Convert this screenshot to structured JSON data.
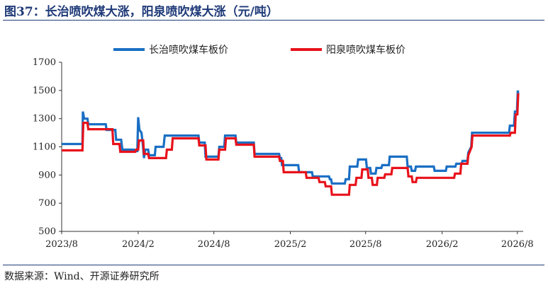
{
  "title": "图37：长治喷吹煤大涨，阳泉喷吹煤大涨（元/吨）",
  "source": "数据来源：Wind、开源证券研究所",
  "chart_data": {
    "type": "line",
    "xlabel": "",
    "ylabel": "",
    "ylim": [
      500,
      1700
    ],
    "yticks": [
      "500",
      "700",
      "900",
      "1100",
      "1300",
      "1500",
      "1700"
    ],
    "xlim": [
      "2023-08-01",
      "2026-08-15"
    ],
    "xticks": [
      {
        "date": "2023-08-01",
        "label": "2023/8"
      },
      {
        "date": "2024-02-01",
        "label": "2024/2"
      },
      {
        "date": "2024-08-01",
        "label": "2024/8"
      },
      {
        "date": "2025-02-01",
        "label": "2025/2"
      },
      {
        "date": "2025-08-01",
        "label": "2025/8"
      },
      {
        "date": "2026-02-01",
        "label": "2026/2"
      },
      {
        "date": "2026-08-01",
        "label": "2026/8"
      }
    ],
    "grid": false,
    "legend_position": "top-center",
    "series": [
      {
        "name": "长治喷吹煤车板价",
        "color": "#1a6fc4",
        "points": [
          [
            "2023-08-01",
            1120
          ],
          [
            "2023-09-20",
            1120
          ],
          [
            "2023-09-21",
            1350
          ],
          [
            "2023-09-24",
            1300
          ],
          [
            "2023-10-02",
            1300
          ],
          [
            "2023-10-04",
            1260
          ],
          [
            "2023-11-15",
            1260
          ],
          [
            "2023-11-17",
            1220
          ],
          [
            "2023-12-08",
            1220
          ],
          [
            "2023-12-10",
            1150
          ],
          [
            "2023-12-22",
            1150
          ],
          [
            "2023-12-25",
            1080
          ],
          [
            "2024-01-22",
            1080
          ],
          [
            "2024-01-24",
            1070
          ],
          [
            "2024-01-30",
            1070
          ],
          [
            "2024-02-01",
            1310
          ],
          [
            "2024-02-04",
            1220
          ],
          [
            "2024-02-09",
            1200
          ],
          [
            "2024-02-12",
            1120
          ],
          [
            "2024-02-15",
            1020
          ],
          [
            "2024-02-18",
            1080
          ],
          [
            "2024-02-25",
            1080
          ],
          [
            "2024-02-27",
            1040
          ],
          [
            "2024-03-12",
            1040
          ],
          [
            "2024-03-14",
            1100
          ],
          [
            "2024-04-02",
            1100
          ],
          [
            "2024-04-05",
            1180
          ],
          [
            "2024-06-25",
            1180
          ],
          [
            "2024-06-27",
            1130
          ],
          [
            "2024-07-10",
            1130
          ],
          [
            "2024-07-12",
            1030
          ],
          [
            "2024-08-12",
            1030
          ],
          [
            "2024-08-14",
            1100
          ],
          [
            "2024-08-26",
            1100
          ],
          [
            "2024-08-28",
            1180
          ],
          [
            "2024-09-22",
            1180
          ],
          [
            "2024-09-24",
            1130
          ],
          [
            "2024-11-05",
            1130
          ],
          [
            "2024-11-07",
            1050
          ],
          [
            "2025-01-05",
            1050
          ],
          [
            "2025-01-07",
            1020
          ],
          [
            "2025-01-10",
            1020
          ],
          [
            "2025-01-12",
            970
          ],
          [
            "2025-02-20",
            970
          ],
          [
            "2025-02-22",
            920
          ],
          [
            "2025-03-25",
            920
          ],
          [
            "2025-03-27",
            890
          ],
          [
            "2025-05-05",
            890
          ],
          [
            "2025-05-07",
            870
          ],
          [
            "2025-05-10",
            870
          ],
          [
            "2025-05-12",
            840
          ],
          [
            "2025-06-12",
            840
          ],
          [
            "2025-06-14",
            870
          ],
          [
            "2025-06-22",
            870
          ],
          [
            "2025-06-24",
            960
          ],
          [
            "2025-07-12",
            960
          ],
          [
            "2025-07-14",
            1010
          ],
          [
            "2025-08-02",
            1010
          ],
          [
            "2025-08-04",
            950
          ],
          [
            "2025-08-12",
            950
          ],
          [
            "2025-08-14",
            910
          ],
          [
            "2025-08-25",
            910
          ],
          [
            "2025-08-27",
            950
          ],
          [
            "2025-09-08",
            950
          ],
          [
            "2025-09-10",
            970
          ],
          [
            "2025-09-26",
            970
          ],
          [
            "2025-09-28",
            1030
          ],
          [
            "2025-11-08",
            1030
          ],
          [
            "2025-11-10",
            960
          ],
          [
            "2025-11-18",
            960
          ],
          [
            "2025-11-20",
            930
          ],
          [
            "2025-11-28",
            930
          ],
          [
            "2025-11-30",
            960
          ],
          [
            "2026-01-12",
            960
          ],
          [
            "2026-01-14",
            930
          ],
          [
            "2026-02-10",
            930
          ],
          [
            "2026-02-12",
            960
          ],
          [
            "2026-03-05",
            960
          ],
          [
            "2026-03-07",
            980
          ],
          [
            "2026-03-20",
            980
          ],
          [
            "2026-03-22",
            1000
          ],
          [
            "2026-04-03",
            1000
          ],
          [
            "2026-04-05",
            1060
          ],
          [
            "2026-04-12",
            1100
          ],
          [
            "2026-04-14",
            1200
          ],
          [
            "2026-07-12",
            1200
          ],
          [
            "2026-07-14",
            1250
          ],
          [
            "2026-07-24",
            1250
          ],
          [
            "2026-07-26",
            1350
          ],
          [
            "2026-07-31",
            1350
          ],
          [
            "2026-08-02",
            1500
          ],
          [
            "2026-08-03",
            1480
          ]
        ]
      },
      {
        "name": "阳泉喷吹煤车板价",
        "color": "#e8121b",
        "points": [
          [
            "2023-08-01",
            1075
          ],
          [
            "2023-09-20",
            1075
          ],
          [
            "2023-09-22",
            1270
          ],
          [
            "2023-10-02",
            1270
          ],
          [
            "2023-10-04",
            1225
          ],
          [
            "2023-12-01",
            1225
          ],
          [
            "2023-12-03",
            1120
          ],
          [
            "2023-12-18",
            1120
          ],
          [
            "2023-12-20",
            1065
          ],
          [
            "2024-01-25",
            1065
          ],
          [
            "2024-01-27",
            1080
          ],
          [
            "2024-02-01",
            1080
          ],
          [
            "2024-02-03",
            1145
          ],
          [
            "2024-02-13",
            1145
          ],
          [
            "2024-02-15",
            1050
          ],
          [
            "2024-02-25",
            1050
          ],
          [
            "2024-02-27",
            1020
          ],
          [
            "2024-04-08",
            1020
          ],
          [
            "2024-04-10",
            1080
          ],
          [
            "2024-04-22",
            1080
          ],
          [
            "2024-04-24",
            1160
          ],
          [
            "2024-06-25",
            1160
          ],
          [
            "2024-06-27",
            1110
          ],
          [
            "2024-07-12",
            1110
          ],
          [
            "2024-07-14",
            1010
          ],
          [
            "2024-08-12",
            1010
          ],
          [
            "2024-08-14",
            1080
          ],
          [
            "2024-08-28",
            1080
          ],
          [
            "2024-08-30",
            1160
          ],
          [
            "2024-09-22",
            1160
          ],
          [
            "2024-09-24",
            1115
          ],
          [
            "2024-11-05",
            1115
          ],
          [
            "2024-11-07",
            1030
          ],
          [
            "2025-01-05",
            1030
          ],
          [
            "2025-01-07",
            1000
          ],
          [
            "2025-01-14",
            1000
          ],
          [
            "2025-01-16",
            920
          ],
          [
            "2025-03-10",
            920
          ],
          [
            "2025-03-12",
            880
          ],
          [
            "2025-04-10",
            880
          ],
          [
            "2025-04-12",
            850
          ],
          [
            "2025-04-25",
            850
          ],
          [
            "2025-04-27",
            820
          ],
          [
            "2025-05-10",
            820
          ],
          [
            "2025-05-12",
            760
          ],
          [
            "2025-06-22",
            760
          ],
          [
            "2025-06-24",
            830
          ],
          [
            "2025-07-08",
            830
          ],
          [
            "2025-07-10",
            880
          ],
          [
            "2025-07-22",
            880
          ],
          [
            "2025-07-24",
            940
          ],
          [
            "2025-08-06",
            940
          ],
          [
            "2025-08-08",
            880
          ],
          [
            "2025-08-16",
            880
          ],
          [
            "2025-08-18",
            830
          ],
          [
            "2025-08-28",
            830
          ],
          [
            "2025-08-30",
            880
          ],
          [
            "2025-09-15",
            880
          ],
          [
            "2025-09-17",
            905
          ],
          [
            "2025-10-02",
            905
          ],
          [
            "2025-10-04",
            950
          ],
          [
            "2025-11-10",
            950
          ],
          [
            "2025-11-12",
            890
          ],
          [
            "2025-11-20",
            890
          ],
          [
            "2025-11-22",
            850
          ],
          [
            "2025-11-30",
            850
          ],
          [
            "2025-12-02",
            880
          ],
          [
            "2026-03-02",
            880
          ],
          [
            "2026-03-04",
            910
          ],
          [
            "2026-03-17",
            910
          ],
          [
            "2026-03-19",
            980
          ],
          [
            "2026-04-03",
            980
          ],
          [
            "2026-04-05",
            1040
          ],
          [
            "2026-04-13",
            1100
          ],
          [
            "2026-04-15",
            1180
          ],
          [
            "2026-07-14",
            1180
          ],
          [
            "2026-07-16",
            1200
          ],
          [
            "2026-07-26",
            1200
          ],
          [
            "2026-07-28",
            1330
          ],
          [
            "2026-08-01",
            1330
          ],
          [
            "2026-08-03",
            1480
          ]
        ]
      }
    ]
  }
}
